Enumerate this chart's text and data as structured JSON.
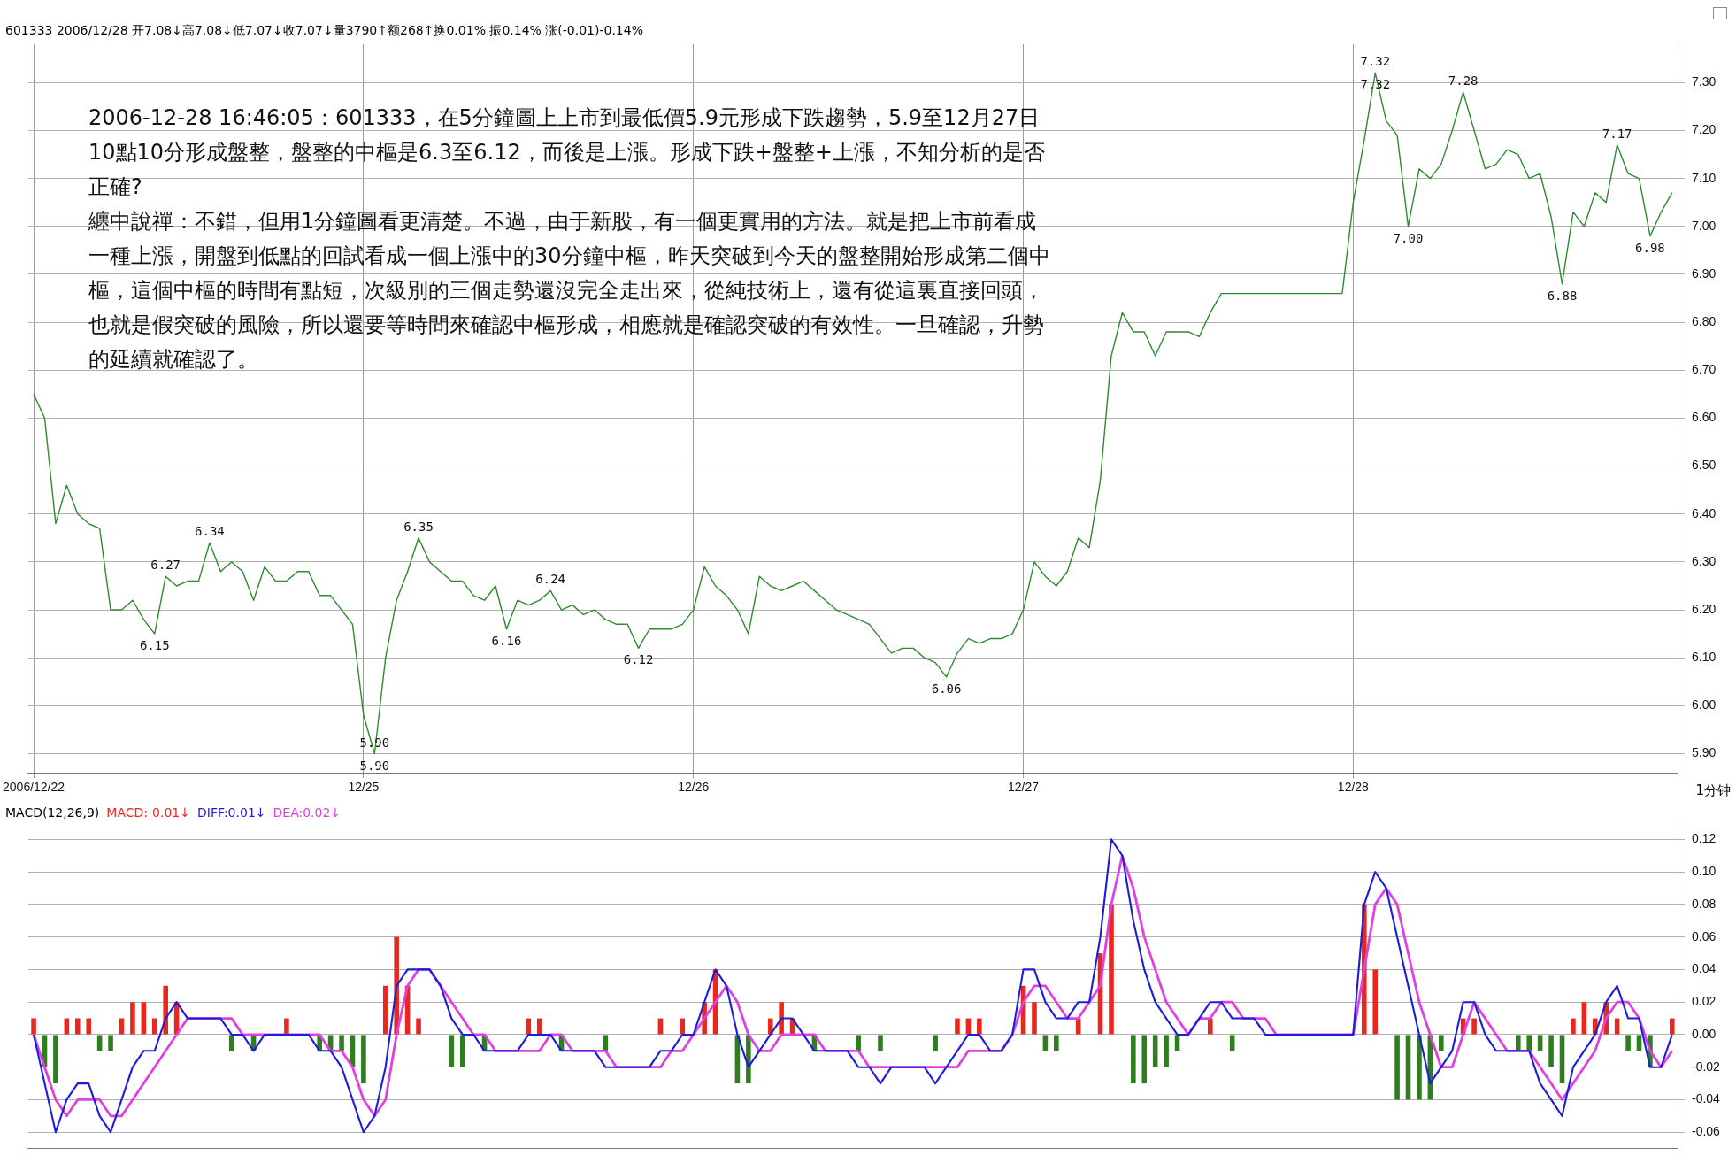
{
  "chart_data": [
    {
      "type": "line",
      "subtitle": "601333 2006/12/28 开7.08↓高7.08↓低7.07↓收7.07↓量3790↑额268↑换0.01% 振0.14% 涨(-0.01)-0.14%",
      "categories": [
        "2006/12/22",
        null,
        null,
        null,
        null,
        null,
        null,
        null,
        null,
        null,
        null,
        null,
        null,
        null,
        null,
        null,
        null,
        null,
        null,
        null,
        null,
        null,
        null,
        null,
        null,
        null,
        null,
        null,
        null,
        null,
        "12/25",
        null,
        null,
        null,
        null,
        null,
        null,
        null,
        null,
        null,
        null,
        null,
        null,
        null,
        null,
        null,
        null,
        null,
        null,
        null,
        null,
        null,
        null,
        null,
        null,
        null,
        null,
        null,
        null,
        null,
        "12/26",
        null,
        null,
        null,
        null,
        null,
        null,
        null,
        null,
        null,
        null,
        null,
        null,
        null,
        null,
        null,
        null,
        null,
        null,
        null,
        null,
        null,
        null,
        null,
        null,
        null,
        null,
        null,
        null,
        null,
        "12/27",
        null,
        null,
        null,
        null,
        null,
        null,
        null,
        null,
        null,
        null,
        null,
        null,
        null,
        null,
        null,
        null,
        null,
        null,
        null,
        null,
        null,
        null,
        null,
        null,
        null,
        null,
        null,
        null,
        null,
        "12/28",
        null,
        null,
        null,
        null,
        null,
        null,
        null,
        null,
        null,
        null,
        null,
        null,
        null,
        null,
        null,
        null,
        null,
        null,
        null,
        null,
        null,
        null,
        null,
        null,
        null,
        null,
        null,
        null,
        null
      ],
      "series": [
        {
          "type": "line",
          "color": "#2e8b2e",
          "values": [
            6.65,
            6.6,
            6.38,
            6.46,
            6.4,
            6.38,
            6.37,
            6.2,
            6.2,
            6.22,
            6.18,
            6.15,
            6.27,
            6.25,
            6.26,
            6.26,
            6.34,
            6.28,
            6.3,
            6.28,
            6.22,
            6.29,
            6.26,
            6.26,
            6.28,
            6.28,
            6.23,
            6.23,
            6.2,
            6.17,
            5.98,
            5.9,
            6.1,
            6.22,
            6.28,
            6.35,
            6.3,
            6.28,
            6.26,
            6.26,
            6.23,
            6.22,
            6.25,
            6.16,
            6.22,
            6.21,
            6.22,
            6.24,
            6.2,
            6.21,
            6.19,
            6.2,
            6.18,
            6.17,
            6.17,
            6.12,
            6.16,
            6.16,
            6.16,
            6.17,
            6.2,
            6.29,
            6.25,
            6.23,
            6.2,
            6.15,
            6.27,
            6.25,
            6.24,
            6.25,
            6.26,
            6.24,
            6.22,
            6.2,
            6.19,
            6.18,
            6.17,
            6.14,
            6.11,
            6.12,
            6.12,
            6.1,
            6.09,
            6.06,
            6.11,
            6.14,
            6.13,
            6.14,
            6.14,
            6.15,
            6.2,
            6.3,
            6.27,
            6.25,
            6.28,
            6.35,
            6.33,
            6.47,
            6.73,
            6.82,
            6.78,
            6.78,
            6.73,
            6.78,
            6.78,
            6.78,
            6.77,
            6.82,
            6.86,
            6.86,
            6.86,
            6.86,
            6.86,
            6.86,
            6.86,
            6.86,
            6.86,
            6.86,
            6.86,
            6.86,
            7.05,
            7.18,
            7.32,
            7.22,
            7.19,
            7.0,
            7.12,
            7.1,
            7.13,
            7.2,
            7.28,
            7.2,
            7.12,
            7.13,
            7.16,
            7.15,
            7.1,
            7.11,
            7.02,
            6.88,
            7.03,
            7.0,
            7.07,
            7.05,
            7.17,
            7.11,
            7.1,
            6.98,
            7.03,
            7.07
          ]
        }
      ],
      "ylim": [
        5.86,
        7.38
      ],
      "yticks": [
        {
          "value": 5.9,
          "label": "5.90"
        },
        {
          "value": 6.0,
          "label": "6.00"
        },
        {
          "value": 6.1,
          "label": "6.10"
        },
        {
          "value": 6.2,
          "label": "6.20"
        },
        {
          "value": 6.3,
          "label": "6.30"
        },
        {
          "value": 6.4,
          "label": "6.40"
        },
        {
          "value": 6.5,
          "label": "6.50"
        },
        {
          "value": 6.6,
          "label": "6.60"
        },
        {
          "value": 6.7,
          "label": "6.70"
        },
        {
          "value": 6.8,
          "label": "6.80"
        },
        {
          "value": 6.9,
          "label": "6.90"
        },
        {
          "value": 7.0,
          "label": "7.00"
        },
        {
          "value": 7.1,
          "label": "7.10"
        },
        {
          "value": 7.2,
          "label": "7.20"
        },
        {
          "value": 7.3,
          "label": "7.30"
        }
      ],
      "grid": true,
      "marker": "none",
      "line_style": "solid",
      "legend": false,
      "xlabel": "1分钟",
      "annotations": [
        "2006-12-28 16:46:05：601333，在5分鐘圖上上市到最低價5.9元形成下跌趨勢，5.9至12月27日10點10分形成盤整，盤整的中樞是6.3至6.12，而後是上漲。形成下跌+盤整+上漲，不知分析的是否正確?",
        "纏中說禪：不錯，但用1分鐘圖看更清楚。不過，由于新股，有一個更實用的方法。就是把上市前看成一種上漲，開盤到低點的回試看成一個上漲中的30分鐘中樞，昨天突破到今天的盤整開始形成第二個中樞，這個中樞的時間有點短，次級別的三個走勢還沒完全走出來，從純技術上，還有從這裏直接回頭，也就是假突破的風險，所以還要等時間來確認中樞形成，相應就是確認突破的有效性。一旦確認，升勢的延續就確認了。",
        {
          "text": "6.34",
          "y": 6.34
        },
        {
          "text": "6.15",
          "y": 6.15
        },
        {
          "text": "6.35",
          "y": 6.35
        },
        {
          "text": "5.90",
          "y": 5.9
        },
        {
          "text": "5.90",
          "y": 5.9
        },
        {
          "text": "6.24",
          "y": 6.24
        },
        {
          "text": "6.16",
          "y": 6.16
        },
        {
          "text": "6.12",
          "y": 6.12
        },
        {
          "text": "6.27",
          "y": 6.27
        },
        {
          "text": "6.06",
          "y": 6.06
        },
        {
          "text": "7.32",
          "y": 7.32
        },
        {
          "text": "7.32",
          "y": 7.32
        },
        {
          "text": "7.28",
          "y": 7.28
        },
        {
          "text": "7.00",
          "y": 7.0
        },
        {
          "text": "7.17",
          "y": 7.17
        },
        {
          "text": "6.88",
          "y": 6.88
        },
        {
          "text": "6.98",
          "y": 6.98
        }
      ]
    },
    {
      "type": "line",
      "title": "MACD(12,26,9)",
      "categories": [
        null,
        null,
        null,
        null,
        null,
        null,
        null,
        null,
        null,
        null,
        null,
        null,
        null,
        null,
        null,
        null,
        null,
        null,
        null,
        null,
        null,
        null,
        null,
        null,
        null,
        null,
        null,
        null,
        null,
        null,
        null,
        null,
        null,
        null,
        null,
        null,
        null,
        null,
        null,
        null,
        null,
        null,
        null,
        null,
        null,
        null,
        null,
        null,
        null,
        null,
        null,
        null,
        null,
        null,
        null,
        null,
        null,
        null,
        null,
        null,
        null,
        null,
        null,
        null,
        null,
        null,
        null,
        null,
        null,
        null,
        null,
        null,
        null,
        null,
        null,
        null,
        null,
        null,
        null,
        null,
        null,
        null,
        null,
        null,
        null,
        null,
        null,
        null,
        null,
        null,
        null,
        null,
        null,
        null,
        null,
        null,
        null,
        null,
        null,
        null,
        null,
        null,
        null,
        null,
        null,
        null,
        null,
        null,
        null,
        null,
        null,
        null,
        null,
        null,
        null,
        null,
        null,
        null,
        null,
        null,
        null,
        null,
        null,
        null,
        null,
        null,
        null,
        null,
        null,
        null,
        null,
        null,
        null,
        null,
        null,
        null,
        null,
        null,
        null,
        null,
        null,
        null,
        null,
        null,
        null,
        null,
        null,
        null,
        null,
        null
      ],
      "series": [
        {
          "type": "bar",
          "name": "MACD:-0.01↓",
          "values": [
            0.01,
            -0.02,
            -0.03,
            0.01,
            0.01,
            0.01,
            -0.01,
            -0.01,
            0.01,
            0.02,
            0.02,
            0.01,
            0.03,
            0.02,
            0,
            0,
            0,
            0,
            -0.01,
            0,
            -0.01,
            0,
            0,
            0.01,
            0,
            0,
            -0.01,
            -0.01,
            -0.01,
            -0.02,
            -0.03,
            0,
            0.03,
            0.06,
            0.03,
            0.01,
            0,
            0,
            -0.02,
            -0.02,
            0,
            -0.01,
            0,
            0,
            0,
            0.01,
            0.01,
            0,
            -0.01,
            0,
            0,
            0,
            -0.01,
            0,
            0,
            0,
            0,
            0.01,
            0,
            0.01,
            0,
            0.02,
            0.04,
            0,
            -0.03,
            -0.03,
            0,
            0.01,
            0.02,
            0.01,
            0,
            -0.01,
            0,
            0,
            0,
            -0.01,
            0,
            -0.01,
            0,
            0,
            0,
            0,
            -0.01,
            0,
            0.01,
            0.01,
            0.01,
            0,
            0,
            0,
            0.03,
            0.02,
            -0.01,
            -0.01,
            0,
            0.01,
            0,
            0.05,
            0.08,
            0,
            -0.03,
            -0.03,
            -0.02,
            -0.02,
            -0.01,
            0,
            0,
            0.01,
            0,
            -0.01,
            0,
            0,
            0,
            0,
            0,
            0,
            0,
            0,
            0,
            0,
            0,
            0.08,
            0.04,
            0,
            -0.04,
            -0.04,
            -0.04,
            -0.04,
            -0.01,
            0,
            0.01,
            0.01,
            0,
            0,
            0,
            -0.01,
            -0.01,
            -0.01,
            -0.02,
            -0.03,
            0.01,
            0.02,
            0.01,
            0.02,
            0.01,
            -0.01,
            -0.01,
            -0.02,
            0,
            0.01
          ],
          "colors": [
            "#e8281e",
            "#2e7d1e",
            "#2e7d1e",
            "#e8281e",
            "#e8281e",
            "#e8281e",
            "#2e7d1e",
            "#2e7d1e",
            "#e8281e",
            "#e8281e",
            "#e8281e",
            "#e8281e",
            "#e8281e",
            "#e8281e",
            "#e8281e",
            "#e8281e",
            "#e8281e",
            "#e8281e",
            "#2e7d1e",
            "#e8281e",
            "#2e7d1e",
            "#e8281e",
            "#e8281e",
            "#e8281e",
            "#e8281e",
            "#e8281e",
            "#2e7d1e",
            "#2e7d1e",
            "#2e7d1e",
            "#2e7d1e",
            "#2e7d1e",
            "#e8281e",
            "#e8281e",
            "#e8281e",
            "#e8281e",
            "#e8281e",
            "#e8281e",
            "#e8281e",
            "#2e7d1e",
            "#2e7d1e",
            "#e8281e",
            "#2e7d1e",
            "#e8281e",
            "#e8281e",
            "#e8281e",
            "#e8281e",
            "#e8281e",
            "#e8281e",
            "#2e7d1e",
            "#e8281e",
            "#e8281e",
            "#e8281e",
            "#2e7d1e",
            "#e8281e",
            "#e8281e",
            "#e8281e",
            "#e8281e",
            "#e8281e",
            "#e8281e",
            "#e8281e",
            "#e8281e",
            "#e8281e",
            "#e8281e",
            "#e8281e",
            "#2e7d1e",
            "#2e7d1e",
            "#e8281e",
            "#e8281e",
            "#e8281e",
            "#e8281e",
            "#e8281e",
            "#2e7d1e",
            "#e8281e",
            "#e8281e",
            "#e8281e",
            "#2e7d1e",
            "#e8281e",
            "#2e7d1e",
            "#e8281e",
            "#e8281e",
            "#e8281e",
            "#e8281e",
            "#2e7d1e",
            "#e8281e",
            "#e8281e",
            "#e8281e",
            "#e8281e",
            "#e8281e",
            "#e8281e",
            "#e8281e",
            "#e8281e",
            "#e8281e",
            "#2e7d1e",
            "#2e7d1e",
            "#e8281e",
            "#e8281e",
            "#e8281e",
            "#e8281e",
            "#e8281e",
            "#e8281e",
            "#2e7d1e",
            "#2e7d1e",
            "#2e7d1e",
            "#2e7d1e",
            "#2e7d1e",
            "#e8281e",
            "#e8281e",
            "#e8281e",
            "#e8281e",
            "#2e7d1e",
            "#e8281e",
            "#e8281e",
            "#e8281e",
            "#e8281e",
            "#e8281e",
            "#e8281e",
            "#e8281e",
            "#e8281e",
            "#e8281e",
            "#e8281e",
            "#e8281e",
            "#e8281e",
            "#e8281e",
            "#e8281e",
            "#2e7d1e",
            "#2e7d1e",
            "#2e7d1e",
            "#2e7d1e",
            "#2e7d1e",
            "#e8281e",
            "#e8281e",
            "#e8281e",
            "#e8281e",
            "#e8281e",
            "#e8281e",
            "#2e7d1e",
            "#2e7d1e",
            "#2e7d1e",
            "#2e7d1e",
            "#2e7d1e",
            "#e8281e",
            "#e8281e",
            "#e8281e",
            "#e8281e",
            "#e8281e",
            "#2e7d1e",
            "#2e7d1e",
            "#2e7d1e",
            "#e8281e",
            "#e8281e"
          ]
        },
        {
          "type": "line",
          "name": "DIFF:0.01↓",
          "color": "#1c1cdc",
          "values": [
            0,
            -0.03,
            -0.06,
            -0.04,
            -0.03,
            -0.03,
            -0.05,
            -0.06,
            -0.04,
            -0.02,
            -0.01,
            -0.01,
            0.01,
            0.02,
            0.01,
            0.01,
            0.01,
            0.01,
            0,
            0,
            -0.01,
            0,
            0,
            0,
            0,
            0,
            -0.01,
            -0.01,
            -0.02,
            -0.04,
            -0.06,
            -0.05,
            -0.02,
            0.03,
            0.04,
            0.04,
            0.04,
            0.03,
            0.01,
            0,
            0,
            -0.01,
            -0.01,
            -0.01,
            -0.01,
            0,
            0,
            0,
            -0.01,
            -0.01,
            -0.01,
            -0.01,
            -0.02,
            -0.02,
            -0.02,
            -0.02,
            -0.02,
            -0.01,
            -0.01,
            0,
            0,
            0.02,
            0.04,
            0.03,
            0,
            -0.02,
            -0.01,
            0,
            0.01,
            0.01,
            0,
            -0.01,
            -0.01,
            -0.01,
            -0.01,
            -0.02,
            -0.02,
            -0.03,
            -0.02,
            -0.02,
            -0.02,
            -0.02,
            -0.03,
            -0.02,
            -0.01,
            0,
            0,
            -0.01,
            -0.01,
            0,
            0.04,
            0.04,
            0.02,
            0.01,
            0.01,
            0.02,
            0.02,
            0.06,
            0.12,
            0.11,
            0.07,
            0.04,
            0.02,
            0.01,
            0,
            0,
            0.01,
            0.02,
            0.02,
            0.01,
            0.01,
            0.01,
            0,
            0,
            0,
            0,
            0,
            0,
            0,
            0,
            0,
            0.08,
            0.1,
            0.09,
            0.06,
            0.03,
            0,
            -0.03,
            -0.02,
            -0.01,
            0.02,
            0.02,
            0,
            -0.01,
            -0.01,
            -0.01,
            -0.01,
            -0.03,
            -0.04,
            -0.05,
            -0.02,
            -0.01,
            0,
            0.02,
            0.03,
            0.01,
            0.01,
            -0.02,
            -0.02,
            0
          ]
        },
        {
          "type": "line",
          "name": "DEA:0.02↓",
          "color": "#e040e0",
          "values": [
            0,
            -0.02,
            -0.04,
            -0.05,
            -0.04,
            -0.04,
            -0.04,
            -0.05,
            -0.05,
            -0.04,
            -0.03,
            -0.02,
            -0.01,
            0,
            0.01,
            0.01,
            0.01,
            0.01,
            0.01,
            0,
            0,
            0,
            0,
            0,
            0,
            0,
            0,
            -0.01,
            -0.01,
            -0.02,
            -0.04,
            -0.05,
            -0.04,
            0,
            0.03,
            0.04,
            0.04,
            0.03,
            0.02,
            0.01,
            0,
            0,
            -0.01,
            -0.01,
            -0.01,
            -0.01,
            -0.01,
            0,
            0,
            -0.01,
            -0.01,
            -0.01,
            -0.01,
            -0.02,
            -0.02,
            -0.02,
            -0.02,
            -0.02,
            -0.01,
            -0.01,
            0,
            0.01,
            0.02,
            0.03,
            0.02,
            0,
            -0.01,
            -0.01,
            0,
            0,
            0,
            0,
            -0.01,
            -0.01,
            -0.01,
            -0.01,
            -0.02,
            -0.02,
            -0.02,
            -0.02,
            -0.02,
            -0.02,
            -0.02,
            -0.02,
            -0.02,
            -0.01,
            -0.01,
            -0.01,
            -0.01,
            0,
            0.02,
            0.03,
            0.03,
            0.02,
            0.01,
            0.01,
            0.02,
            0.03,
            0.08,
            0.11,
            0.09,
            0.06,
            0.04,
            0.02,
            0.01,
            0,
            0.01,
            0.01,
            0.02,
            0.02,
            0.01,
            0.01,
            0.01,
            0,
            0,
            0,
            0,
            0,
            0,
            0,
            0,
            0.04,
            0.08,
            0.09,
            0.08,
            0.05,
            0.02,
            0,
            -0.02,
            -0.02,
            0,
            0.02,
            0.01,
            0,
            -0.01,
            -0.01,
            -0.01,
            -0.02,
            -0.03,
            -0.04,
            -0.03,
            -0.02,
            -0.01,
            0.01,
            0.02,
            0.02,
            0.01,
            -0.01,
            -0.02,
            -0.01
          ]
        }
      ],
      "ylim": [
        -0.07,
        0.13
      ],
      "yticks": [
        {
          "value": -0.06,
          "label": "-0.06"
        },
        {
          "value": -0.04,
          "label": "-0.04"
        },
        {
          "value": -0.02,
          "label": "-0.02"
        },
        {
          "value": 0,
          "label": "0.00"
        },
        {
          "value": 0.02,
          "label": "0.02"
        },
        {
          "value": 0.04,
          "label": "0.04"
        },
        {
          "value": 0.06,
          "label": "0.06"
        },
        {
          "value": 0.08,
          "label": "0.08"
        },
        {
          "value": 0.1,
          "label": "0.10"
        },
        {
          "value": 0.12,
          "label": "0.12"
        }
      ],
      "grid": true,
      "marker": "none",
      "line_style": "solid",
      "legend": "top left",
      "tick_labels": "y"
    }
  ]
}
